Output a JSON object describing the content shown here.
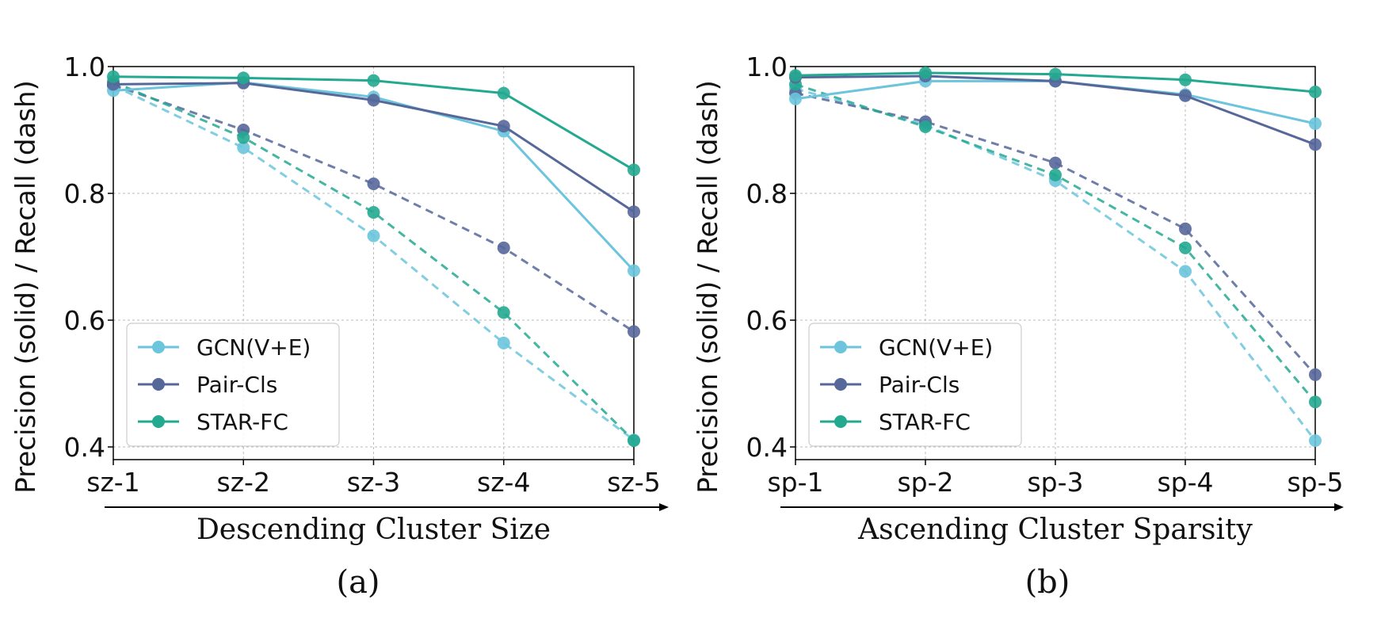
{
  "colors": {
    "GCN(V+E)": "#6cc5dc",
    "Pair-Cls": "#56679a",
    "STAR-FC": "#23a990"
  },
  "chart_data": [
    {
      "type": "line",
      "caption": "(a)",
      "xlabel": "Descending Cluster Size",
      "ylabel": "Precision (solid) / Recall (dash)",
      "categories": [
        "sz-1",
        "sz-2",
        "sz-3",
        "sz-4",
        "sz-5"
      ],
      "ylim": [
        0.38,
        1.0
      ],
      "yticks": [
        "0.4",
        "0.6",
        "0.8",
        "1.0"
      ],
      "grid": true,
      "legend": "bottom-left",
      "legend_entries": [
        "GCN(V+E)",
        "Pair-Cls",
        "STAR-FC"
      ],
      "series": [
        {
          "name": "GCN(V+E)",
          "metric": "precision",
          "style": "solid",
          "values": [
            0.962,
            0.975,
            0.952,
            0.898,
            0.678
          ]
        },
        {
          "name": "Pair-Cls",
          "metric": "precision",
          "style": "solid",
          "values": [
            0.972,
            0.974,
            0.947,
            0.906,
            0.771
          ]
        },
        {
          "name": "STAR-FC",
          "metric": "precision",
          "style": "solid",
          "values": [
            0.984,
            0.982,
            0.978,
            0.958,
            0.837
          ]
        },
        {
          "name": "GCN(V+E)",
          "metric": "recall",
          "style": "dash",
          "values": [
            0.97,
            0.872,
            0.733,
            0.564,
            0.411
          ]
        },
        {
          "name": "Pair-Cls",
          "metric": "recall",
          "style": "dash",
          "values": [
            0.971,
            0.9,
            0.815,
            0.714,
            0.582
          ]
        },
        {
          "name": "STAR-FC",
          "metric": "recall",
          "style": "dash",
          "values": [
            0.976,
            0.888,
            0.77,
            0.612,
            0.41
          ]
        }
      ]
    },
    {
      "type": "line",
      "caption": "(b)",
      "xlabel": "Ascending Cluster Sparsity",
      "ylabel": "Precision (solid) / Recall (dash)",
      "categories": [
        "sp-1",
        "sp-2",
        "sp-3",
        "sp-4",
        "sp-5"
      ],
      "ylim": [
        0.38,
        1.0
      ],
      "yticks": [
        "0.4",
        "0.6",
        "0.8",
        "1.0"
      ],
      "grid": true,
      "legend": "bottom-left",
      "legend_entries": [
        "GCN(V+E)",
        "Pair-Cls",
        "STAR-FC"
      ],
      "series": [
        {
          "name": "GCN(V+E)",
          "metric": "precision",
          "style": "solid",
          "values": [
            0.949,
            0.977,
            0.977,
            0.956,
            0.91
          ]
        },
        {
          "name": "Pair-Cls",
          "metric": "precision",
          "style": "solid",
          "values": [
            0.983,
            0.985,
            0.977,
            0.954,
            0.877
          ]
        },
        {
          "name": "STAR-FC",
          "metric": "precision",
          "style": "solid",
          "values": [
            0.986,
            0.99,
            0.988,
            0.979,
            0.96
          ]
        },
        {
          "name": "GCN(V+E)",
          "metric": "recall",
          "style": "dash",
          "values": [
            0.965,
            0.908,
            0.82,
            0.677,
            0.41
          ]
        },
        {
          "name": "Pair-Cls",
          "metric": "recall",
          "style": "dash",
          "values": [
            0.958,
            0.913,
            0.848,
            0.744,
            0.514
          ]
        },
        {
          "name": "STAR-FC",
          "metric": "recall",
          "style": "dash",
          "values": [
            0.972,
            0.905,
            0.829,
            0.714,
            0.471
          ]
        }
      ]
    }
  ]
}
